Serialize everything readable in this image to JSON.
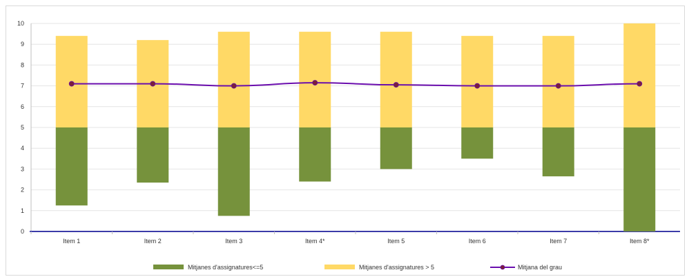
{
  "chart_data": {
    "type": "bar",
    "categories": [
      "Item 1",
      "Item 2",
      "Item 3",
      "Item 4*",
      "Item 5",
      "Item 6",
      "Item 7",
      "Item 8*"
    ],
    "ylim": [
      0,
      10
    ],
    "yticks": [
      "0",
      "1",
      "2",
      "3",
      "4",
      "5",
      "6",
      "7",
      "8",
      "9",
      "10"
    ],
    "grid": true,
    "legend_position": "bottom",
    "series": [
      {
        "name": "Mitjanes d'assignatures<=5",
        "kind": "floating-bar",
        "color": "#76923c",
        "low": [
          1.25,
          2.35,
          0.75,
          2.4,
          3.0,
          3.5,
          2.65,
          0.0
        ],
        "high": [
          5,
          5,
          5,
          5,
          5,
          5,
          5,
          5
        ]
      },
      {
        "name": "Mitjanes d'assignatures > 5",
        "kind": "floating-bar",
        "color": "#ffd966",
        "low": [
          5,
          5,
          5,
          5,
          5,
          5,
          5,
          5
        ],
        "high": [
          9.4,
          9.2,
          9.6,
          9.6,
          9.6,
          9.4,
          9.4,
          10.0
        ]
      },
      {
        "name": "Mitjana del grau",
        "kind": "line",
        "color": "#6a0dad",
        "marker_color": "#7b1f3a",
        "values": [
          7.1,
          7.1,
          7.0,
          7.15,
          7.05,
          7.0,
          7.0,
          7.1
        ]
      }
    ]
  }
}
